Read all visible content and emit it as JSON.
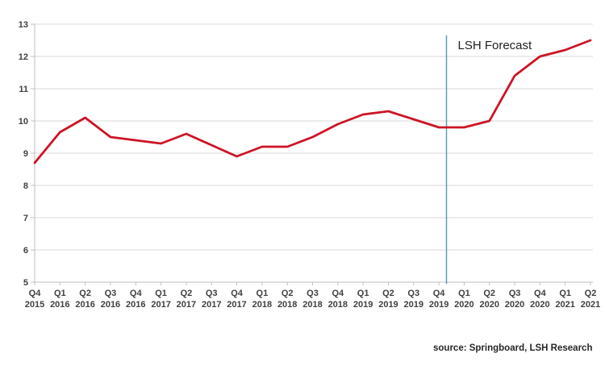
{
  "chart_data": {
    "type": "line",
    "title": "",
    "xlabel": "",
    "ylabel": "",
    "categories": [
      "Q4 2015",
      "Q1 2016",
      "Q2 2016",
      "Q3 2016",
      "Q4 2016",
      "Q1 2017",
      "Q2 2017",
      "Q3 2017",
      "Q4 2017",
      "Q1 2018",
      "Q2 2018",
      "Q3 2018",
      "Q4 2018",
      "Q1 2019",
      "Q2 2019",
      "Q3 2019",
      "Q4 2019",
      "Q1 2020",
      "Q2 2020",
      "Q3 2020",
      "Q4 2020",
      "Q1 2021",
      "Q2 2021"
    ],
    "values": [
      8.7,
      9.65,
      10.1,
      9.5,
      9.4,
      9.3,
      9.6,
      9.25,
      8.9,
      9.2,
      9.2,
      9.5,
      9.9,
      10.2,
      10.3,
      10.05,
      9.8,
      9.8,
      10.0,
      11.4,
      12.0,
      12.2,
      12.5
    ],
    "ylim": [
      5,
      13
    ],
    "ytick_step": 1,
    "grid": true,
    "line_color": "#cc1425",
    "forecast_line": {
      "label": "LSH Forecast",
      "x_index": 16.3,
      "color": "#5f9eae"
    },
    "source": "source: Springboard, LSH Research",
    "colors": {
      "grid": "#d9d9d9",
      "axis": "#bfbfbf",
      "tick": "#bfbfbf",
      "axis_text": "#404040"
    }
  }
}
